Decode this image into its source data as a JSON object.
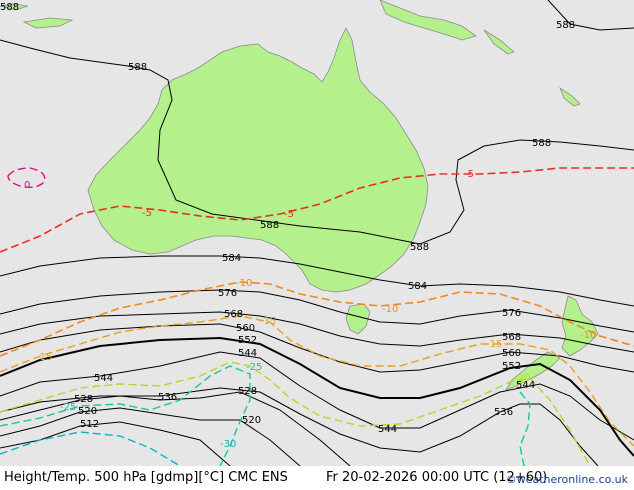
{
  "footer": {
    "left_text": "Height/Temp. 500 hPa [gdmp][°C] CMC ENS",
    "right_text": "Fr 20-02-2026 00:00 UTC (12+60)",
    "credit": "©weatheronline.co.uk"
  },
  "colors": {
    "ocean": "#e6e6e6",
    "land": "#b4f08c",
    "coast": "#8c8c8c",
    "height_line": "#000000",
    "temp_minus5": "#e8302a",
    "temp_minus10": "#f08a1e",
    "temp_minus15": "#e8a020",
    "temp_minus20": "#b4d828",
    "temp_minus25": "#14c8a0",
    "temp_minus30": "#0ab4c8",
    "temp_zero": "#e01080"
  },
  "contours": {
    "height_labels": [
      "588",
      "588",
      "588",
      "588",
      "588",
      "588",
      "584",
      "584",
      "576",
      "576",
      "568",
      "568",
      "560",
      "560",
      "552",
      "552",
      "544",
      "544",
      "544",
      "544",
      "536",
      "536",
      "528",
      "528",
      "520",
      "520",
      "512"
    ],
    "temp_labels": [
      "0",
      "-5",
      "-5",
      "-5",
      "-10",
      "-10",
      "-15",
      "-15",
      "-15",
      "-20",
      "-25",
      "-25",
      "-30",
      "-10"
    ]
  }
}
